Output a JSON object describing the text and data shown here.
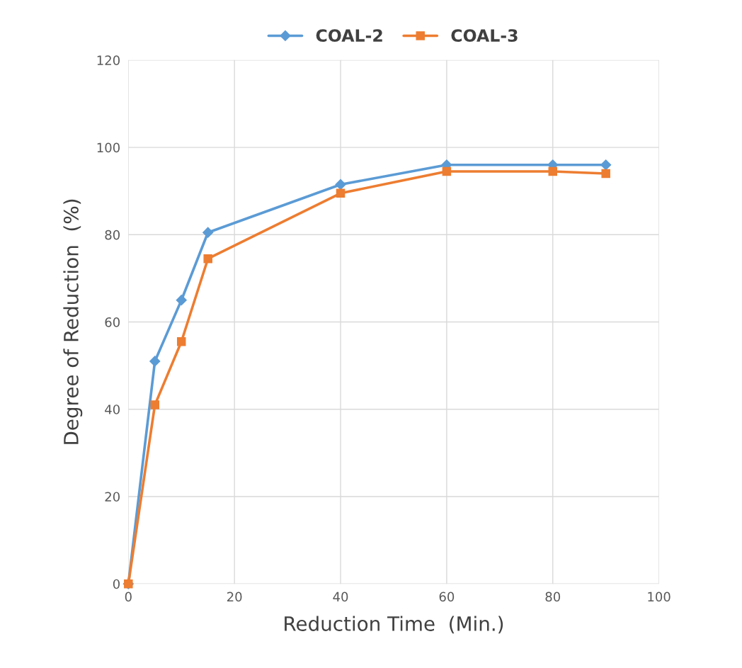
{
  "chart_data": {
    "type": "line",
    "xlabel": "Reduction Time  (Min.)",
    "ylabel": "Degree of Reduction  (%)",
    "x": [
      0,
      5,
      10,
      15,
      40,
      60,
      80,
      90
    ],
    "series": [
      {
        "name": "COAL-2",
        "color": "#5b9bd5",
        "marker": "diamond",
        "values": [
          0,
          51,
          65,
          80.5,
          91.5,
          96,
          96,
          96
        ]
      },
      {
        "name": "COAL-3",
        "color": "#ed7d31",
        "marker": "square",
        "values": [
          0,
          41,
          55.5,
          74.5,
          89.5,
          94.5,
          94.5,
          94
        ]
      }
    ],
    "xlim": [
      0,
      100
    ],
    "xticks": [
      0,
      20,
      40,
      60,
      80,
      100
    ],
    "ylim": [
      0,
      120
    ],
    "yticks": [
      0,
      20,
      40,
      60,
      80,
      100,
      120
    ],
    "grid": true,
    "legend": "top",
    "line_style": "solid"
  }
}
